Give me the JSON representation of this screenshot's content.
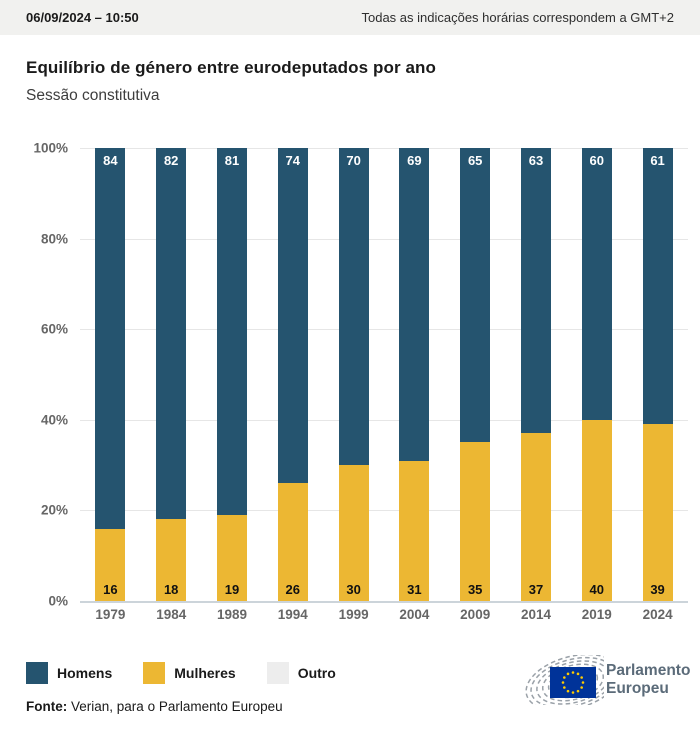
{
  "topbar": {
    "datetime": "06/09/2024 – 10:50",
    "timezone_note": "Todas as indicações horárias correspondem a GMT+2"
  },
  "title": "Equilíbrio de género entre eurodeputados por ano",
  "subtitle": "Sessão constitutiva",
  "chart_data": {
    "type": "bar",
    "stacked": true,
    "unit": "percent",
    "categories": [
      "1979",
      "1984",
      "1989",
      "1994",
      "1999",
      "2004",
      "2009",
      "2014",
      "2019",
      "2024"
    ],
    "series": [
      {
        "name": "Homens",
        "color": "#25546f",
        "values": [
          84,
          82,
          81,
          74,
          70,
          69,
          65,
          63,
          60,
          61
        ]
      },
      {
        "name": "Mulheres",
        "color": "#ecb733",
        "values": [
          16,
          18,
          19,
          26,
          30,
          31,
          35,
          37,
          40,
          39
        ]
      }
    ],
    "y_ticks": [
      0,
      20,
      40,
      60,
      80,
      100
    ],
    "y_tick_suffix": "%",
    "ylim": [
      0,
      100
    ],
    "grid": true,
    "legend_position": "bottom"
  },
  "legend": [
    {
      "label": "Homens",
      "color": "#25546f"
    },
    {
      "label": "Mulheres",
      "color": "#ecb733"
    },
    {
      "label": "Outro",
      "color": "#ededed"
    }
  ],
  "footer": {
    "source_label": "Fonte:",
    "source_text": "Verian, para o Parlamento Europeu"
  },
  "logo": {
    "line1": "Parlamento",
    "line2": "Europeu"
  },
  "colors": {
    "men": "#25546f",
    "women": "#ecb733",
    "other": "#ededed",
    "topbar_bg": "#f1f1ef",
    "gridline": "#e6e6e6",
    "baseline": "#ccd4da",
    "axis_text": "#666666",
    "eu_flag_blue": "#003399",
    "eu_flag_stars": "#ffcc00",
    "logo_gray": "#9aa1a8"
  }
}
